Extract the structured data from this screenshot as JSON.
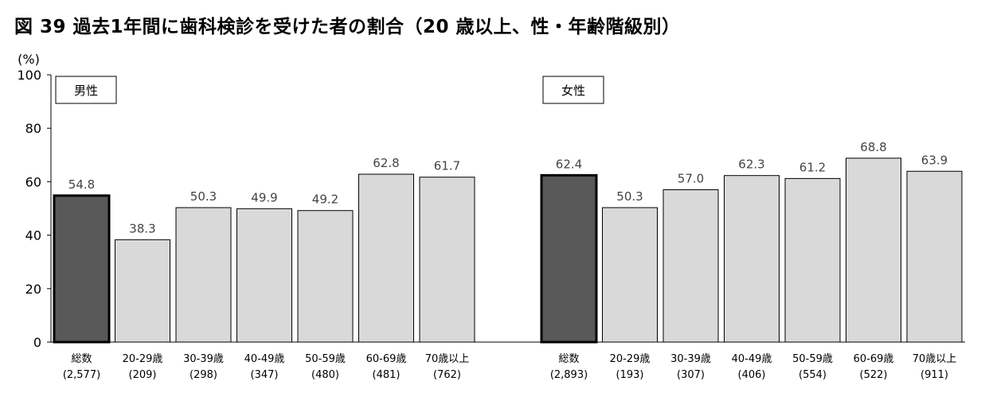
{
  "title": "図 39 過去1年間に歯科検診を受けた者の割合（20 歳以上、性・年齢階級別）",
  "chart_data": {
    "type": "bar",
    "y_unit": "(%)",
    "ylim": [
      0,
      100
    ],
    "yticks": [
      0,
      20,
      40,
      60,
      80,
      100
    ],
    "grid": false,
    "panels": [
      {
        "name": "男性",
        "categories": [
          "総数",
          "20-29歳",
          "30-39歳",
          "40-49歳",
          "50-59歳",
          "60-69歳",
          "70歳以上"
        ],
        "counts": [
          "(2,577)",
          "(209)",
          "(298)",
          "(347)",
          "(480)",
          "(481)",
          "(762)"
        ],
        "values": [
          54.8,
          38.3,
          50.3,
          49.9,
          49.2,
          62.8,
          61.7
        ],
        "labels": [
          "54.8",
          "38.3",
          "50.3",
          "49.9",
          "49.2",
          "62.8",
          "61.7"
        ]
      },
      {
        "name": "女性",
        "categories": [
          "総数",
          "20-29歳",
          "30-39歳",
          "40-49歳",
          "50-59歳",
          "60-69歳",
          "70歳以上"
        ],
        "counts": [
          "(2,893)",
          "(193)",
          "(307)",
          "(406)",
          "(554)",
          "(522)",
          "(911)"
        ],
        "values": [
          62.4,
          50.3,
          57.0,
          62.3,
          61.2,
          68.8,
          63.9
        ],
        "labels": [
          "62.4",
          "50.3",
          "57.0",
          "62.3",
          "61.2",
          "68.8",
          "63.9"
        ]
      }
    ],
    "colors": {
      "total_bar": "#595959",
      "age_bar": "#d9d9d9",
      "outline": "#000000"
    }
  }
}
